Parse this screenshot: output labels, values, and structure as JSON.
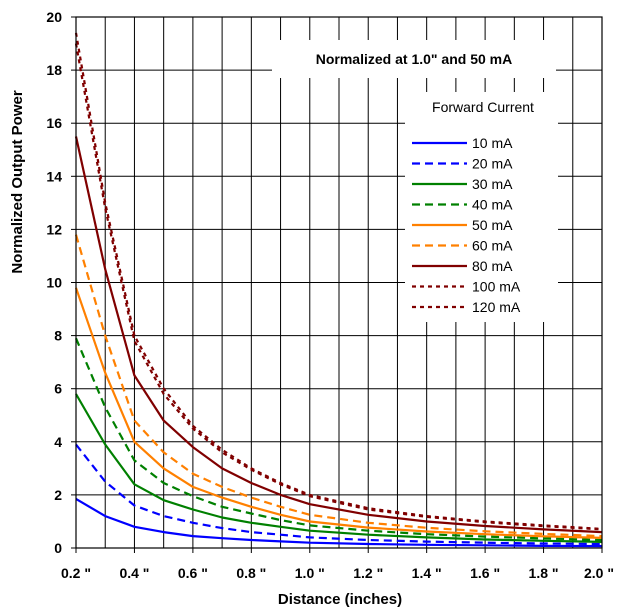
{
  "chart_data": {
    "type": "line",
    "title": "",
    "annotation": "Normalized at 1.0\" and 50 mA",
    "xlabel": "Distance (inches)",
    "ylabel": "Normalized Output Power",
    "xlim": [
      0.2,
      2.0
    ],
    "ylim": [
      0,
      20
    ],
    "x_ticks": [
      0.2,
      0.4,
      0.6,
      0.8,
      1.0,
      1.2,
      1.4,
      1.6,
      1.8,
      2.0
    ],
    "x_tick_labels": [
      "0.2 \"",
      "0.4 \"",
      "0.6 \"",
      "0.8 \"",
      "1.0 \"",
      "1.2 \"",
      "1.4 \"",
      "1.6 \"",
      "1.8 \"",
      "2.0 \""
    ],
    "y_ticks": [
      0,
      2,
      4,
      6,
      8,
      10,
      12,
      14,
      16,
      18,
      20
    ],
    "y_tick_labels": [
      "0",
      "2",
      "4",
      "6",
      "8",
      "10",
      "12",
      "14",
      "16",
      "18",
      "20"
    ],
    "x_minor_step": 0.1,
    "grid": true,
    "legend_title": "Forward Current",
    "legend_position": "top-right",
    "x": [
      0.2,
      0.3,
      0.4,
      0.5,
      0.6,
      0.7,
      0.8,
      0.9,
      1.0,
      1.2,
      1.4,
      1.6,
      1.8,
      2.0
    ],
    "series": [
      {
        "name": "10 mA",
        "color": "#0000FF",
        "dash": "solid",
        "values": [
          1.85,
          1.2,
          0.8,
          0.6,
          0.45,
          0.37,
          0.3,
          0.25,
          0.2,
          0.15,
          0.12,
          0.1,
          0.08,
          0.07
        ]
      },
      {
        "name": "20 mA",
        "color": "#0000FF",
        "dash": "dashed",
        "values": [
          3.9,
          2.5,
          1.6,
          1.2,
          0.95,
          0.75,
          0.6,
          0.5,
          0.4,
          0.3,
          0.24,
          0.2,
          0.17,
          0.15
        ]
      },
      {
        "name": "30 mA",
        "color": "#008000",
        "dash": "solid",
        "values": [
          5.8,
          3.9,
          2.4,
          1.8,
          1.45,
          1.15,
          0.95,
          0.8,
          0.65,
          0.5,
          0.4,
          0.32,
          0.27,
          0.23
        ]
      },
      {
        "name": "40 mA",
        "color": "#008000",
        "dash": "dashed",
        "values": [
          7.9,
          5.3,
          3.3,
          2.45,
          1.95,
          1.55,
          1.3,
          1.05,
          0.85,
          0.65,
          0.52,
          0.43,
          0.36,
          0.3
        ]
      },
      {
        "name": "50 mA",
        "color": "#FF8000",
        "dash": "solid",
        "values": [
          9.8,
          6.6,
          4.0,
          3.0,
          2.3,
          1.9,
          1.55,
          1.25,
          1.0,
          0.77,
          0.62,
          0.52,
          0.44,
          0.38
        ]
      },
      {
        "name": "60 mA",
        "color": "#FF8000",
        "dash": "dashed",
        "values": [
          11.8,
          8.0,
          4.8,
          3.6,
          2.8,
          2.3,
          1.9,
          1.55,
          1.25,
          0.95,
          0.76,
          0.63,
          0.53,
          0.45
        ]
      },
      {
        "name": "80 mA",
        "color": "#800000",
        "dash": "solid",
        "values": [
          15.5,
          10.5,
          6.5,
          4.8,
          3.8,
          3.0,
          2.45,
          2.0,
          1.65,
          1.25,
          1.0,
          0.83,
          0.7,
          0.6
        ]
      },
      {
        "name": "100 mA",
        "color": "#800000",
        "dash": "dotted",
        "values": [
          19.4,
          13.0,
          8.0,
          6.0,
          4.6,
          3.7,
          3.0,
          2.45,
          2.0,
          1.5,
          1.2,
          1.0,
          0.85,
          0.72
        ]
      },
      {
        "name": "120 mA",
        "color": "#800000",
        "dash": "dotted",
        "values": [
          19.0,
          12.8,
          7.8,
          5.8,
          4.5,
          3.6,
          2.95,
          2.4,
          1.95,
          1.45,
          1.17,
          0.97,
          0.82,
          0.7
        ]
      }
    ]
  }
}
